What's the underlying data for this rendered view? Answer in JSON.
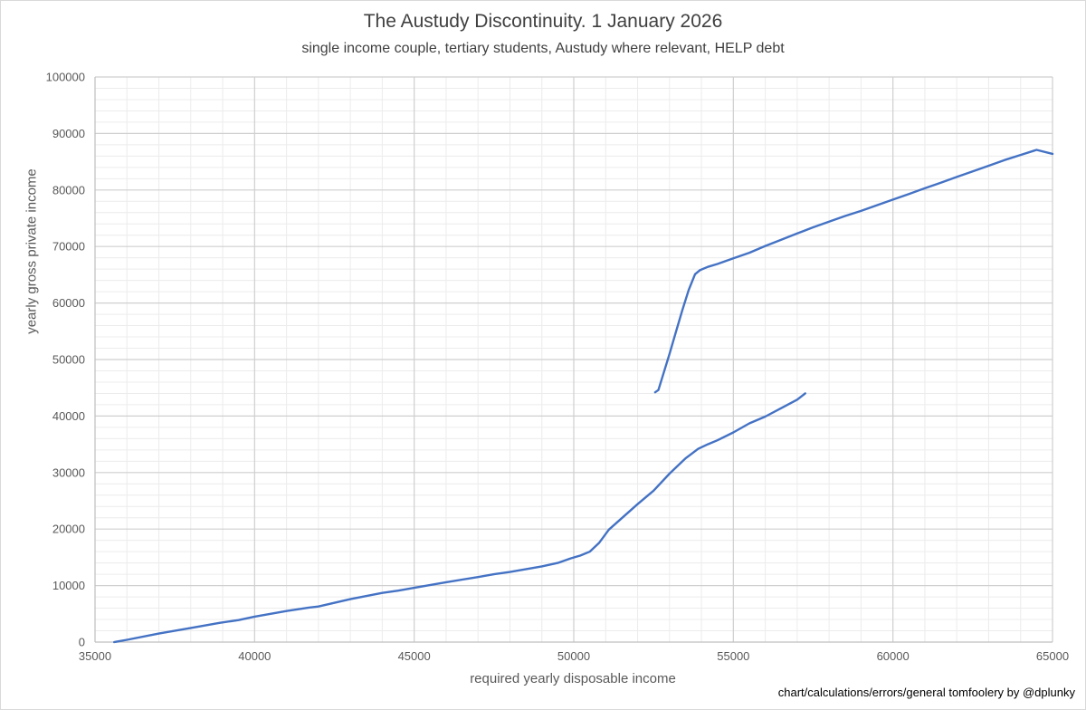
{
  "chart_data": {
    "type": "line",
    "title": "The Austudy Discontinuity. 1 January 2026",
    "subtitle": "single income couple, tertiary students, Austudy where relevant, HELP debt",
    "xlabel": "required yearly disposable income",
    "ylabel": "yearly gross private income",
    "annotations": [
      "chart/calculations/errors/general tomfoolery by @dplunky"
    ],
    "xlim": [
      35000,
      65000
    ],
    "ylim": [
      0,
      100000
    ],
    "x_major_ticks": [
      35000,
      40000,
      45000,
      50000,
      55000,
      60000,
      65000
    ],
    "y_major_ticks": [
      0,
      10000,
      20000,
      30000,
      40000,
      50000,
      60000,
      70000,
      80000,
      90000,
      100000
    ],
    "x_minor_step": 1000,
    "y_minor_step": 2000,
    "grid": true,
    "legend": "none",
    "series_color": "#4472c4",
    "series": [
      {
        "x": [
          35600,
          36000,
          37000,
          38000,
          38900,
          39500,
          40000,
          41000,
          41700,
          42000,
          43000,
          44000,
          44500,
          45000,
          46000,
          47000,
          47500,
          48000,
          49000,
          49500,
          49900,
          50200,
          50500,
          50800,
          51100,
          51500,
          52000,
          52500,
          53000,
          53500,
          53900,
          54200,
          54500,
          55000,
          55500,
          56000,
          56500,
          57000,
          57250
        ],
        "y": [
          0,
          400,
          1500,
          2500,
          3400,
          3900,
          4500,
          5500,
          6100,
          6300,
          7600,
          8700,
          9100,
          9600,
          10600,
          11500,
          12000,
          12400,
          13400,
          14000,
          14800,
          15300,
          16000,
          17600,
          19900,
          21900,
          24400,
          26800,
          29800,
          32500,
          34200,
          35000,
          35700,
          37100,
          38700,
          39900,
          41400,
          42900,
          44000
        ]
      },
      {
        "x": [
          52550,
          52650,
          52800,
          53000,
          53200,
          53400,
          53600,
          53800,
          53950,
          54200,
          54500,
          55000,
          55500,
          56000,
          56500,
          57000,
          57500,
          58000,
          58500,
          59000,
          59500,
          60000,
          60500,
          61000,
          61500,
          62000,
          62500,
          63000,
          63500,
          64000,
          64500,
          65000
        ],
        "y": [
          44200,
          44600,
          47300,
          51000,
          54900,
          58700,
          62300,
          65100,
          65800,
          66400,
          66900,
          67900,
          68900,
          70100,
          71200,
          72300,
          73400,
          74400,
          75400,
          76300,
          77300,
          78300,
          79300,
          80300,
          81300,
          82300,
          83300,
          84300,
          85300,
          86200,
          87100,
          86400
        ]
      }
    ]
  }
}
